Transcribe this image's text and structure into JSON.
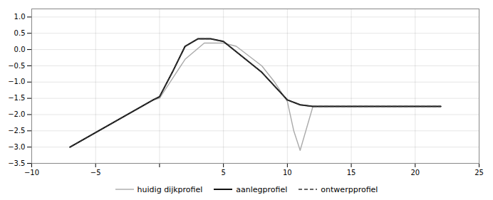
{
  "chart_data": {
    "type": "line",
    "x_is_numeric": true,
    "xlim": [
      -10,
      25
    ],
    "ylim": [
      -3.5,
      1.25
    ],
    "xticks": [
      -10,
      -5,
      {
        "value": 0,
        "label": null
      },
      5,
      10,
      15,
      20,
      25
    ],
    "yticks": [
      -3.5,
      {
        "value": -3,
        "label": "−3.0"
      },
      -2.5,
      {
        "value": -2,
        "label": "−2.0"
      },
      -1.5,
      {
        "value": -1,
        "label": "−1.0"
      },
      -0.5,
      {
        "value": 0,
        "label": "0.0"
      },
      0.5,
      {
        "value": 1,
        "label": "1.0"
      }
    ],
    "grid": true,
    "legend": "bottom",
    "series": [
      {
        "name": "huidig dijkprofiel",
        "color": "#aaaaaa",
        "line_style": "solid",
        "x": [
          -7,
          -0.5,
          0,
          1,
          2,
          3.5,
          5,
          6,
          8,
          9,
          10,
          10.5,
          11,
          12,
          22
        ],
        "values": [
          -3.0,
          -1.55,
          -1.5,
          -0.9,
          -0.3,
          0.2,
          0.2,
          0.1,
          -0.5,
          -1.0,
          -1.6,
          -2.5,
          -3.1,
          -1.75,
          -1.75
        ]
      },
      {
        "name": "aanlegprofiel",
        "color": "#111111",
        "line_style": "solid",
        "x": [
          -7,
          -0.5,
          0,
          1,
          2,
          3,
          4,
          5,
          8,
          10,
          11,
          12,
          22
        ],
        "values": [
          -3.0,
          -1.55,
          -1.45,
          -0.7,
          0.1,
          0.33,
          0.33,
          0.25,
          -0.7,
          -1.55,
          -1.7,
          -1.75,
          -1.75
        ]
      },
      {
        "name": "ontwerpprofiel",
        "color": "#333333",
        "line_style": "dashed",
        "x": [
          -7,
          -0.5,
          0,
          1,
          2,
          3,
          4,
          5,
          8,
          10,
          11,
          12,
          22
        ],
        "values": [
          -3.0,
          -1.55,
          -1.45,
          -0.7,
          0.1,
          0.33,
          0.33,
          0.25,
          -0.7,
          -1.55,
          -1.7,
          -1.75,
          -1.75
        ]
      }
    ]
  }
}
